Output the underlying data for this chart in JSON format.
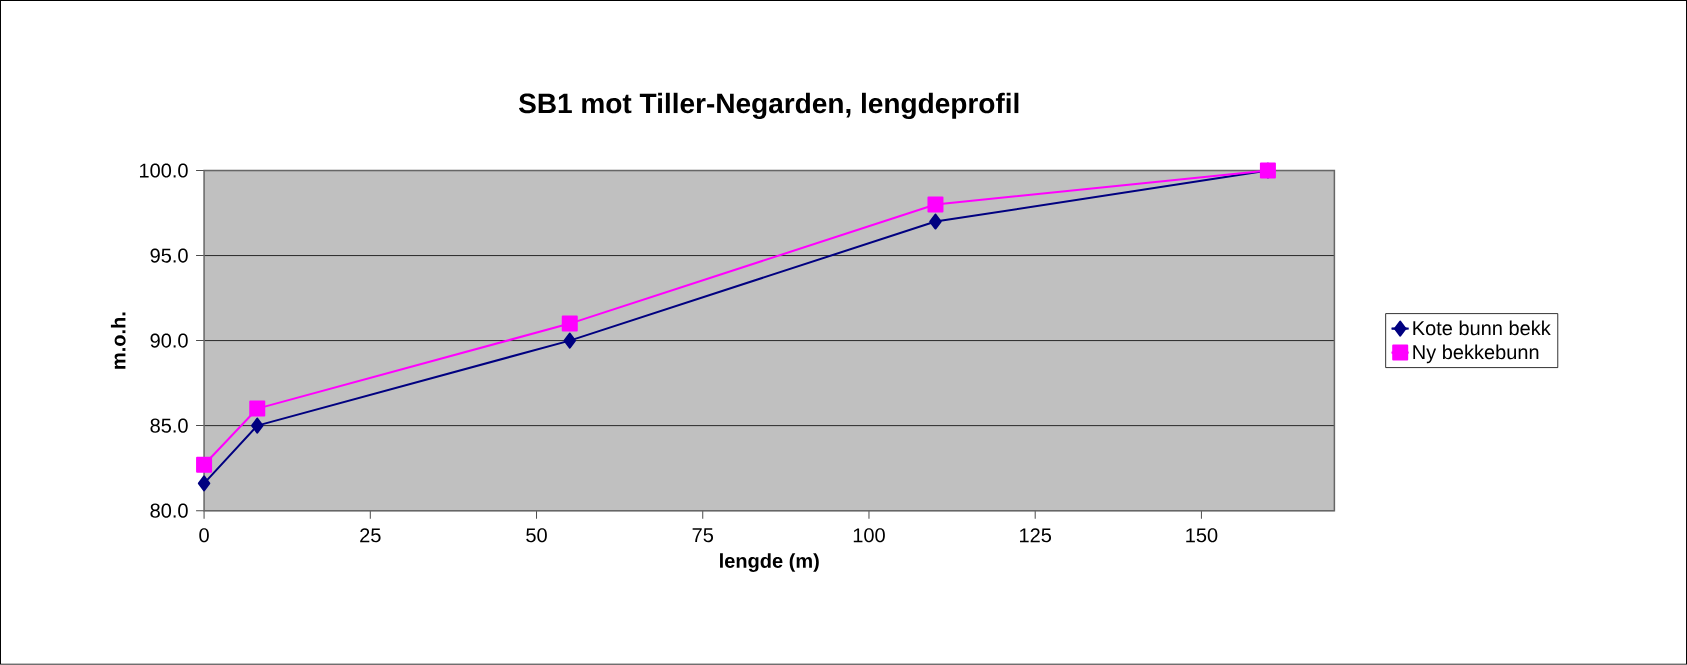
{
  "chart_data": {
    "type": "line",
    "title": "SB1 mot Tiller-Negarden, lengdeprofil",
    "xlabel": "lengde (m)",
    "ylabel": "m.o.h.",
    "x": [
      0,
      8,
      55,
      110,
      160
    ],
    "series": [
      {
        "name": "Kote bunn bekk",
        "color": "#000080",
        "marker": "diamond",
        "values": [
          81.6,
          85,
          90,
          97,
          100
        ]
      },
      {
        "name": "Ny bekkebunn",
        "color": "#ff00ff",
        "marker": "square",
        "values": [
          82.7,
          86,
          91,
          98,
          100
        ]
      }
    ],
    "xlim": [
      0,
      170
    ],
    "xticks": [
      0,
      25,
      50,
      75,
      100,
      125,
      150
    ],
    "ylim": [
      80,
      100
    ],
    "yticks": [
      {
        "value": 80,
        "label": "80.0"
      },
      {
        "value": 85,
        "label": "85.0"
      },
      {
        "value": 90,
        "label": "90.0"
      },
      {
        "value": 95,
        "label": "95.0"
      },
      {
        "value": 100,
        "label": "100.0"
      }
    ],
    "grid": "y",
    "legend": "right",
    "line_style": "solid"
  }
}
